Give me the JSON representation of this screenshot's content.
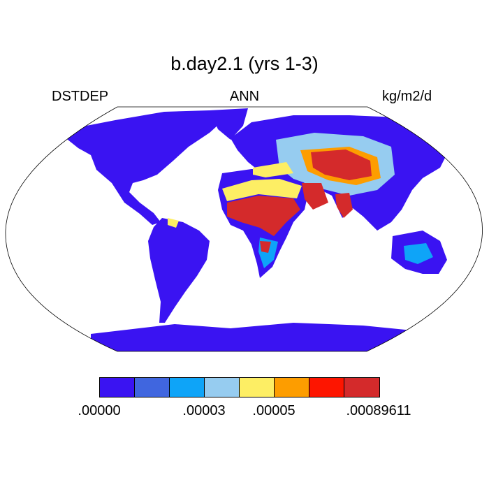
{
  "title": "b.day2.1 (yrs 1-3)",
  "subtitle_left": "DSTDEP",
  "subtitle_center": "ANN",
  "subtitle_right": "kg/m2/d",
  "colorbar": {
    "colors": [
      "#3a13f2",
      "#4066df",
      "#0ea4f8",
      "#96ccf0",
      "#fdee64",
      "#fd9d00",
      "#fd1500",
      "#d42a2b"
    ],
    "labels": [
      {
        "text": ".00000",
        "boundary": 0
      },
      {
        "text": ".00003",
        "boundary": 3
      },
      {
        "text": ".00005",
        "boundary": 5
      },
      {
        "text": ".00089611",
        "boundary": 7
      }
    ]
  },
  "colors": {
    "land_background": "#3a13f2",
    "ocean": "#ffffff",
    "coastline": "#000000"
  }
}
